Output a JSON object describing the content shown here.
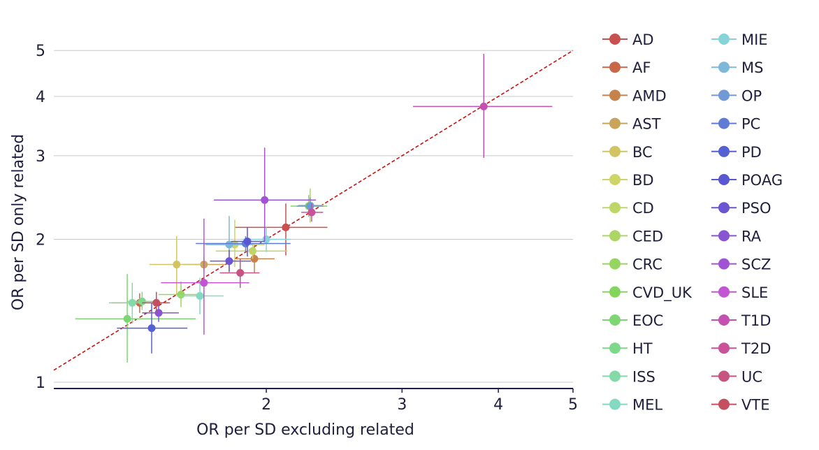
{
  "chart_data": {
    "type": "scatter",
    "xlabel": "OR per SD excluding related",
    "ylabel": "OR per SD only related",
    "x_scale": "log",
    "y_scale": "log",
    "xlim": [
      1.06,
      5.0
    ],
    "ylim": [
      0.97,
      5.3
    ],
    "x_ticks": [
      2,
      3,
      4,
      5
    ],
    "y_ticks": [
      1,
      2,
      3,
      4,
      5
    ],
    "grid": "horizontal",
    "reference_line": "y = x",
    "reference_line_color": "#cc1111",
    "axis_color": "#1a1a5e",
    "legend_position": "right",
    "series": [
      {
        "name": "AD",
        "color": "#c8504f",
        "x": 2.12,
        "x_lo": 1.82,
        "x_hi": 2.4,
        "y": 2.12,
        "y_lo": 1.85,
        "y_hi": 2.38
      },
      {
        "name": "AF",
        "color": "#c96848",
        "x": 1.37,
        "x_lo": 1.26,
        "x_hi": 1.49,
        "y": 1.47,
        "y_lo": 1.4,
        "y_hi": 1.54
      },
      {
        "name": "AMD",
        "color": "#c7824a",
        "x": 1.93,
        "x_lo": 1.82,
        "x_hi": 2.05,
        "y": 1.82,
        "y_lo": 1.7,
        "y_hi": 1.95
      },
      {
        "name": "AST",
        "color": "#c9a45a",
        "x": 1.66,
        "x_lo": 1.56,
        "x_hi": 1.77,
        "y": 1.77,
        "y_lo": 1.71,
        "y_hi": 1.84
      },
      {
        "name": "BC",
        "color": "#d2c463",
        "x": 1.53,
        "x_lo": 1.41,
        "x_hi": 1.65,
        "y": 1.77,
        "y_lo": 1.53,
        "y_hi": 2.03
      },
      {
        "name": "BD",
        "color": "#cfd466",
        "x": 1.82,
        "x_lo": 1.66,
        "x_hi": 1.99,
        "y": 1.95,
        "y_lo": 1.75,
        "y_hi": 2.2
      },
      {
        "name": "CD",
        "color": "#bdd667",
        "x": 1.92,
        "x_lo": 1.72,
        "x_hi": 2.13,
        "y": 1.89,
        "y_lo": 1.82,
        "y_hi": 1.96
      },
      {
        "name": "CED",
        "color": "#abd665",
        "x": 2.28,
        "x_lo": 2.2,
        "x_hi": 2.37,
        "y": 2.36,
        "y_lo": 2.17,
        "y_hi": 2.56
      },
      {
        "name": "CRC",
        "color": "#96d55f",
        "x": 1.55,
        "x_lo": 1.45,
        "x_hi": 1.66,
        "y": 1.53,
        "y_lo": 1.44,
        "y_hi": 1.63
      },
      {
        "name": "CVD_UK",
        "color": "#85d55c",
        "x": 2.27,
        "x_lo": 2.15,
        "x_hi": 2.4,
        "y": 2.35,
        "y_lo": 2.23,
        "y_hi": 2.48
      },
      {
        "name": "EOC",
        "color": "#7dd673",
        "x": 1.32,
        "x_lo": 1.13,
        "x_hi": 1.62,
        "y": 1.36,
        "y_lo": 1.1,
        "y_hi": 1.69
      },
      {
        "name": "HT",
        "color": "#7dd88b",
        "x": 1.38,
        "x_lo": 1.32,
        "x_hi": 1.45,
        "y": 1.48,
        "y_lo": 1.42,
        "y_hi": 1.55
      },
      {
        "name": "ISS",
        "color": "#84d9a9",
        "x": 1.34,
        "x_lo": 1.25,
        "x_hi": 1.43,
        "y": 1.47,
        "y_lo": 1.33,
        "y_hi": 1.62
      },
      {
        "name": "MEL",
        "color": "#85d9c3",
        "x": 1.64,
        "x_lo": 1.53,
        "x_hi": 1.76,
        "y": 1.52,
        "y_lo": 1.39,
        "y_hi": 1.66
      },
      {
        "name": "MIE",
        "color": "#86d3d8",
        "x": 2.0,
        "x_lo": 1.86,
        "x_hi": 2.15,
        "y": 2.0,
        "y_lo": 1.88,
        "y_hi": 2.12
      },
      {
        "name": "MS",
        "color": "#7eb8d8",
        "x": 1.79,
        "x_lo": 1.67,
        "x_hi": 1.92,
        "y": 1.95,
        "y_lo": 1.7,
        "y_hi": 2.24
      },
      {
        "name": "OP",
        "color": "#6f9ad6",
        "x": 2.28,
        "x_lo": 2.19,
        "x_hi": 2.37,
        "y": 2.35,
        "y_lo": 2.25,
        "y_hi": 2.45
      },
      {
        "name": "PC",
        "color": "#5f7cd4",
        "x": 1.88,
        "x_lo": 1.62,
        "x_hi": 2.15,
        "y": 1.96,
        "y_lo": 1.88,
        "y_hi": 2.03
      },
      {
        "name": "PD",
        "color": "#5560d1",
        "x": 1.42,
        "x_lo": 1.28,
        "x_hi": 1.58,
        "y": 1.3,
        "y_lo": 1.15,
        "y_hi": 1.47
      },
      {
        "name": "POAG",
        "color": "#5a57d2",
        "x": 1.89,
        "x_lo": 1.8,
        "x_hi": 1.99,
        "y": 1.98,
        "y_lo": 1.84,
        "y_hi": 2.12
      },
      {
        "name": "PSO",
        "color": "#6b55d1",
        "x": 1.79,
        "x_lo": 1.69,
        "x_hi": 1.91,
        "y": 1.8,
        "y_lo": 1.71,
        "y_hi": 1.9
      },
      {
        "name": "RA",
        "color": "#8854d2",
        "x": 1.45,
        "x_lo": 1.38,
        "x_hi": 1.54,
        "y": 1.4,
        "y_lo": 1.34,
        "y_hi": 1.47
      },
      {
        "name": "SCZ",
        "color": "#a054d3",
        "x": 1.99,
        "x_lo": 1.71,
        "x_hi": 2.32,
        "y": 2.42,
        "y_lo": 1.98,
        "y_hi": 3.12
      },
      {
        "name": "SLE",
        "color": "#c155d2",
        "x": 1.66,
        "x_lo": 1.46,
        "x_hi": 1.9,
        "y": 1.62,
        "y_lo": 1.26,
        "y_hi": 2.21
      },
      {
        "name": "T1D",
        "color": "#c451b0",
        "x": 3.83,
        "x_lo": 3.1,
        "x_hi": 4.7,
        "y": 3.81,
        "y_lo": 2.97,
        "y_hi": 4.92
      },
      {
        "name": "T2D",
        "color": "#c95299",
        "x": 2.29,
        "x_lo": 2.22,
        "x_hi": 2.37,
        "y": 2.28,
        "y_lo": 2.18,
        "y_hi": 2.38
      },
      {
        "name": "UC",
        "color": "#c65380",
        "x": 1.85,
        "x_lo": 1.74,
        "x_hi": 1.96,
        "y": 1.7,
        "y_lo": 1.58,
        "y_hi": 1.82
      },
      {
        "name": "VTE",
        "color": "#c44f5e",
        "x": 1.44,
        "x_lo": 1.38,
        "x_hi": 1.5,
        "y": 1.47,
        "y_lo": 1.4,
        "y_hi": 1.55
      }
    ]
  }
}
